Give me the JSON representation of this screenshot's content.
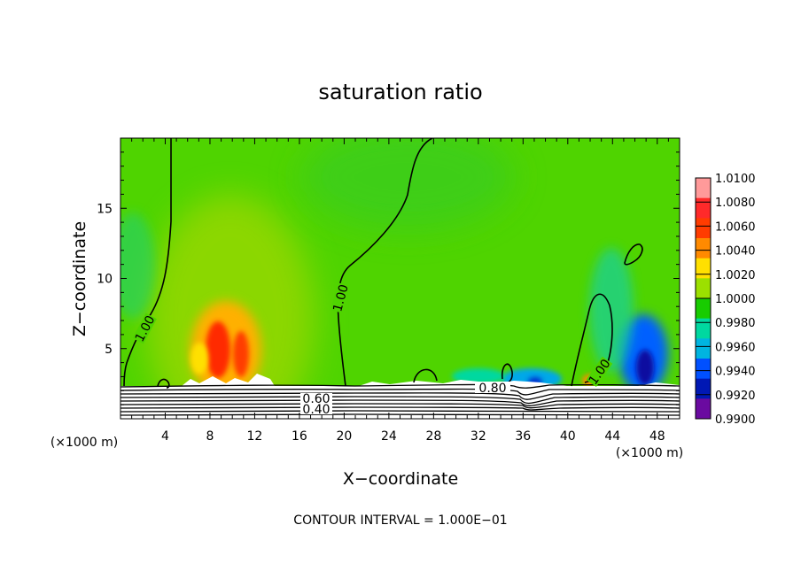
{
  "chart_data": {
    "type": "heatmap",
    "title": "saturation ratio",
    "xlabel": "X−coordinate",
    "ylabel": "Z−coordinate",
    "x_unit_left": "(×1000 m)",
    "x_unit_right": "(×1000 m)",
    "footer": "CONTOUR INTERVAL = 1.000E−01",
    "xlim": [
      0,
      50
    ],
    "ylim": [
      0,
      20
    ],
    "x_ticks": [
      "4",
      "8",
      "12",
      "16",
      "20",
      "24",
      "28",
      "32",
      "36",
      "40",
      "44",
      "48"
    ],
    "y_ticks": [
      "5",
      "10",
      "15"
    ],
    "colorbar": {
      "range": [
        0.99,
        1.01
      ],
      "labels": [
        "1.0100",
        "1.0080",
        "1.0060",
        "1.0040",
        "1.0020",
        "1.0000",
        "0.9980",
        "0.9960",
        "0.9940",
        "0.9920",
        "0.9900"
      ],
      "colors": [
        "#ff9a9a",
        "#ff2a2a",
        "#ff3c00",
        "#ff8a00",
        "#ffe000",
        "#9ce000",
        "#18cc00",
        "#00d8a0",
        "#00b4e0",
        "#0050ff",
        "#0018b4",
        "#6a0aa0"
      ]
    },
    "contour_labels": [
      "1.00",
      "1.00",
      "1.00",
      "0.60",
      "0.40",
      "0.80"
    ],
    "features": [
      {
        "name": "moist maximum",
        "x": 9.5,
        "z": 4.5,
        "value": 1.008
      },
      {
        "name": "moist patch",
        "x": 43,
        "z": 2.6,
        "value": 1.005
      },
      {
        "name": "dry minimum",
        "x": 47,
        "z": 3.5,
        "value": 0.992
      },
      {
        "name": "dry patch",
        "x": 35,
        "z": 2.6,
        "value": 0.994
      }
    ]
  }
}
